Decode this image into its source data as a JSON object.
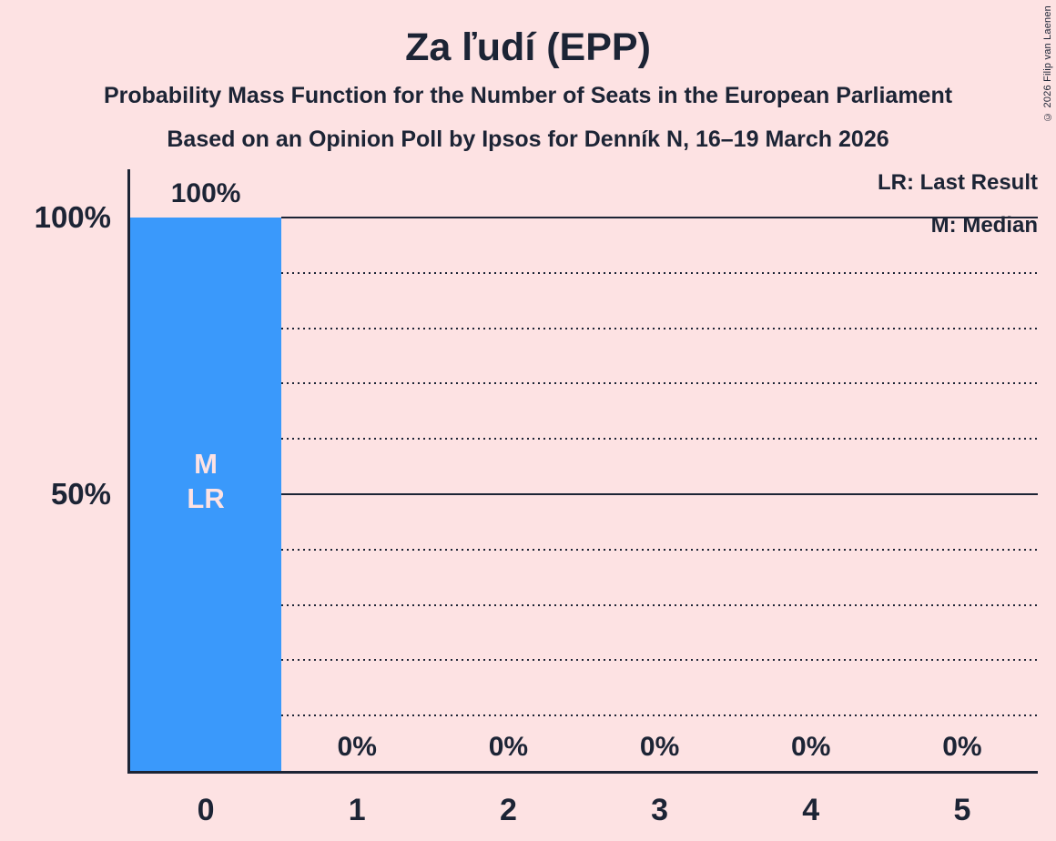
{
  "header": {
    "title": "Za ľudí (EPP)",
    "subtitle1": "Probability Mass Function for the Number of Seats in the European Parliament",
    "subtitle2": "Based on an Opinion Poll by Ipsos for Denník N, 16–19 March 2026"
  },
  "legend": {
    "lr_label": "LR: Last Result",
    "m_label": "M: Median"
  },
  "copyright": "© 2026 Filip van Laenen",
  "colors": {
    "background": "#fde2e3",
    "bar": "#3a99fb",
    "text": "#1c2435",
    "bar_label": "#fde2e3"
  },
  "chart_data": {
    "type": "bar",
    "title": "Za ľudí (EPP)",
    "subtitle": "Probability Mass Function for the Number of Seats in the European Parliament",
    "source_line": "Based on an Opinion Poll by Ipsos for Denník N, 16–19 March 2026",
    "categories": [
      "0",
      "1",
      "2",
      "3",
      "4",
      "5"
    ],
    "values": [
      100,
      0,
      0,
      0,
      0,
      0
    ],
    "value_labels": [
      "100%",
      "0%",
      "0%",
      "0%",
      "0%",
      "0%"
    ],
    "ylim": [
      0,
      100
    ],
    "yticks": [
      {
        "pct": 100,
        "label": "100%"
      },
      {
        "pct": 50,
        "label": "50%"
      }
    ],
    "gridlines": {
      "solid_pcts": [
        100,
        50
      ],
      "dotted_pcts": [
        90,
        80,
        70,
        60,
        40,
        30,
        20,
        10
      ]
    },
    "annotations": [
      {
        "category_index": 0,
        "lines": [
          "M",
          "LR"
        ],
        "anchor_pct": 50
      }
    ],
    "legend_position": "top-right",
    "median_seats": 0,
    "last_result_seats": 0
  }
}
